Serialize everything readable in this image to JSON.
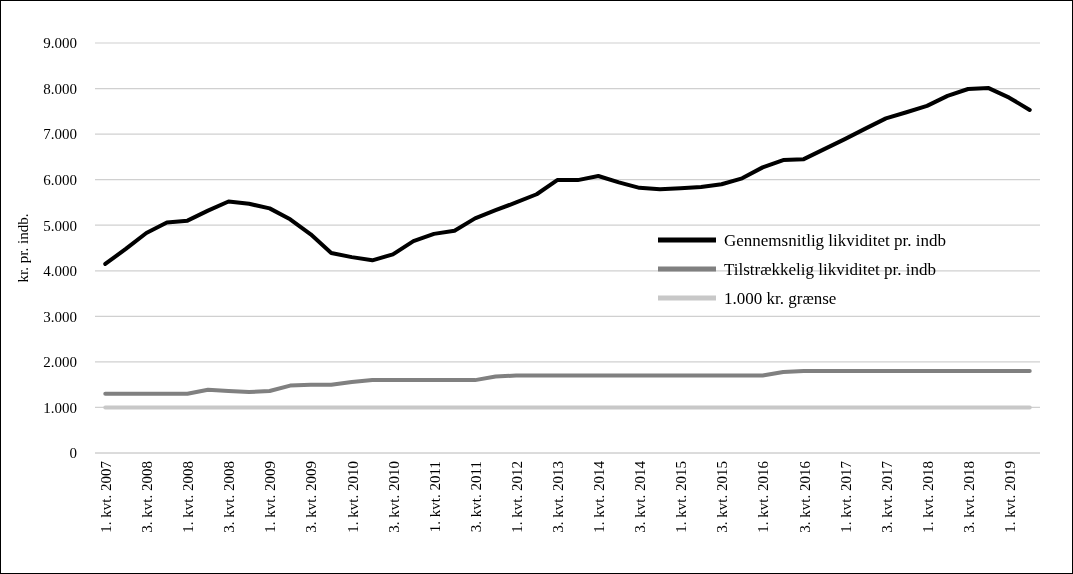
{
  "chart_data": {
    "type": "line",
    "ylabel": "kr. pr. indb.",
    "categories": [
      "1. kvt. 2007",
      null,
      "3. kvt. 2008",
      null,
      "1. kvt. 2008",
      null,
      "3. kvt. 2008",
      null,
      "1. kvt. 2009",
      null,
      "3. kvt. 2009",
      null,
      "1. kvt. 2010",
      null,
      "3. kvt. 2010",
      null,
      "1. kvt. 2011",
      null,
      "3. kvt. 2011",
      null,
      "1. kvt. 2012",
      null,
      "3. kvt. 2013",
      null,
      "1. kvt. 2014",
      null,
      "3. kvt. 2014",
      null,
      "1. kvt. 2015",
      null,
      "3. kvt. 2015",
      null,
      "1. kvt. 2016",
      null,
      "3. kvt. 2016",
      null,
      "1. kvt. 2017",
      null,
      "3. kvt. 2017",
      null,
      "1. kvt. 2018",
      null,
      "3. kvt. 2018",
      null,
      "1. kvt. 2019",
      null
    ],
    "series": [
      {
        "name": "Gennemsnitlig likviditet pr. indb",
        "color": "#000000",
        "values": [
          4150,
          4480,
          4830,
          5060,
          5100,
          5320,
          5520,
          5470,
          5370,
          5130,
          4800,
          4390,
          4300,
          4230,
          4360,
          4650,
          4810,
          4880,
          5150,
          5330,
          5500,
          5680,
          5990,
          5990,
          6080,
          5940,
          5820,
          5790,
          5810,
          5840,
          5900,
          6030,
          6270,
          6430,
          6450,
          6670,
          6890,
          7120,
          7345,
          7480,
          7620,
          7840,
          7990,
          8010,
          7800,
          7530
        ]
      },
      {
        "name": "Tilstrækkelig likviditet pr. indb",
        "color": "#808080",
        "values": [
          1300,
          1300,
          1300,
          1300,
          1300,
          1390,
          1360,
          1340,
          1360,
          1480,
          1500,
          1500,
          1560,
          1600,
          1600,
          1600,
          1600,
          1600,
          1600,
          1680,
          1700,
          1700,
          1700,
          1700,
          1700,
          1700,
          1700,
          1700,
          1700,
          1700,
          1700,
          1700,
          1700,
          1780,
          1800,
          1800,
          1800,
          1800,
          1800,
          1800,
          1800,
          1800,
          1800,
          1800,
          1800,
          1800
        ]
      },
      {
        "name": "1.000 kr. grænse",
        "color": "#c8c8c8",
        "values": [
          1000,
          1000,
          1000,
          1000,
          1000,
          1000,
          1000,
          1000,
          1000,
          1000,
          1000,
          1000,
          1000,
          1000,
          1000,
          1000,
          1000,
          1000,
          1000,
          1000,
          1000,
          1000,
          1000,
          1000,
          1000,
          1000,
          1000,
          1000,
          1000,
          1000,
          1000,
          1000,
          1000,
          1000,
          1000,
          1000,
          1000,
          1000,
          1000,
          1000,
          1000,
          1000,
          1000,
          1000,
          1000,
          1000
        ]
      }
    ],
    "ylim": [
      0,
      9000
    ],
    "yticks": [
      {
        "value": 0,
        "label": "0"
      },
      {
        "value": 1000,
        "label": "1.000"
      },
      {
        "value": 2000,
        "label": "2.000"
      },
      {
        "value": 3000,
        "label": "3.000"
      },
      {
        "value": 4000,
        "label": "4.000"
      },
      {
        "value": 5000,
        "label": "5.000"
      },
      {
        "value": 6000,
        "label": "6.000"
      },
      {
        "value": 7000,
        "label": "7.000"
      },
      {
        "value": 8000,
        "label": "8.000"
      },
      {
        "value": 9000,
        "label": "9.000"
      }
    ],
    "grid": "y",
    "legend": "right",
    "marker": "none",
    "line_style": "solid"
  }
}
